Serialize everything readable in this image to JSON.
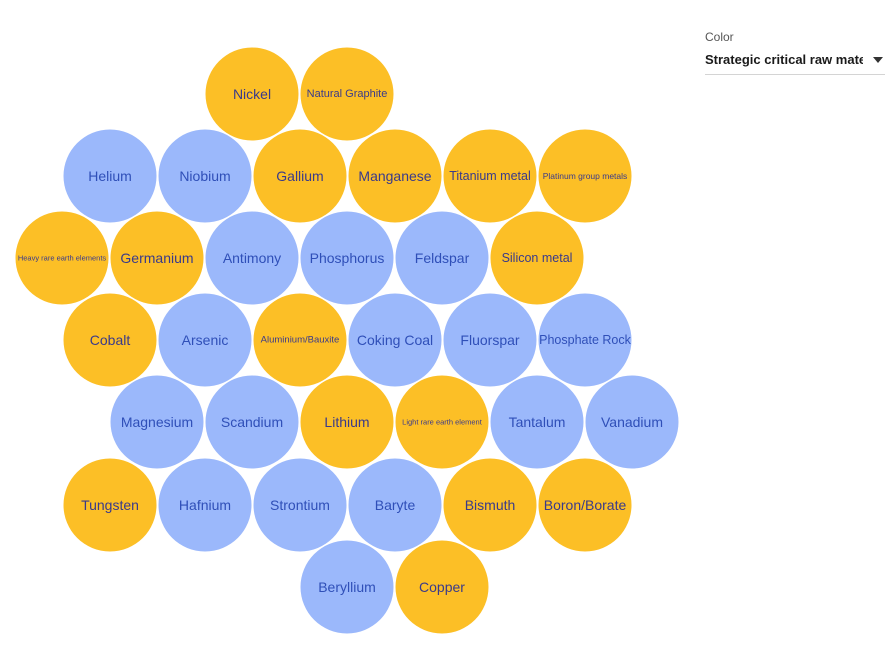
{
  "control": {
    "label": "Color",
    "selected": "Strategic critical raw materials"
  },
  "colors": {
    "strategic": "#fcbf26",
    "non_strategic": "#9bb8fb",
    "text_on_strategic": "#3a3a8a",
    "text_on_non_strategic": "#2f4fb8"
  },
  "chart_data": {
    "type": "bubble-grid",
    "title": "",
    "rows": [
      [
        {
          "name": "Nickel",
          "strategic": true
        },
        {
          "name": "Natural Graphite",
          "strategic": true
        }
      ],
      [
        {
          "name": "Helium",
          "strategic": false
        },
        {
          "name": "Niobium",
          "strategic": false
        },
        {
          "name": "Gallium",
          "strategic": true
        },
        {
          "name": "Manganese",
          "strategic": true
        },
        {
          "name": "Titanium metal",
          "strategic": true
        },
        {
          "name": "Platinum group metals",
          "strategic": true
        }
      ],
      [
        {
          "name": "Heavy rare earth elements",
          "strategic": true
        },
        {
          "name": "Germanium",
          "strategic": true
        },
        {
          "name": "Antimony",
          "strategic": false
        },
        {
          "name": "Phosphorus",
          "strategic": false
        },
        {
          "name": "Feldspar",
          "strategic": false
        },
        {
          "name": "Silicon metal",
          "strategic": true
        }
      ],
      [
        {
          "name": "Cobalt",
          "strategic": true
        },
        {
          "name": "Arsenic",
          "strategic": false
        },
        {
          "name": "Aluminium/Bauxite",
          "strategic": true
        },
        {
          "name": "Coking Coal",
          "strategic": false
        },
        {
          "name": "Fluorspar",
          "strategic": false
        },
        {
          "name": "Phosphate Rock",
          "strategic": false
        }
      ],
      [
        {
          "name": "Magnesium",
          "strategic": false
        },
        {
          "name": "Scandium",
          "strategic": false
        },
        {
          "name": "Lithium",
          "strategic": true
        },
        {
          "name": "Light rare earth element",
          "strategic": true
        },
        {
          "name": "Tantalum",
          "strategic": false
        },
        {
          "name": "Vanadium",
          "strategic": false
        }
      ],
      [
        {
          "name": "Tungsten",
          "strategic": true
        },
        {
          "name": "Hafnium",
          "strategic": false
        },
        {
          "name": "Strontium",
          "strategic": false
        },
        {
          "name": "Baryte",
          "strategic": false
        },
        {
          "name": "Bismuth",
          "strategic": true
        },
        {
          "name": "Boron/Borate",
          "strategic": true
        }
      ],
      [
        {
          "name": "Beryllium",
          "strategic": false
        },
        {
          "name": "Copper",
          "strategic": true
        }
      ]
    ]
  }
}
